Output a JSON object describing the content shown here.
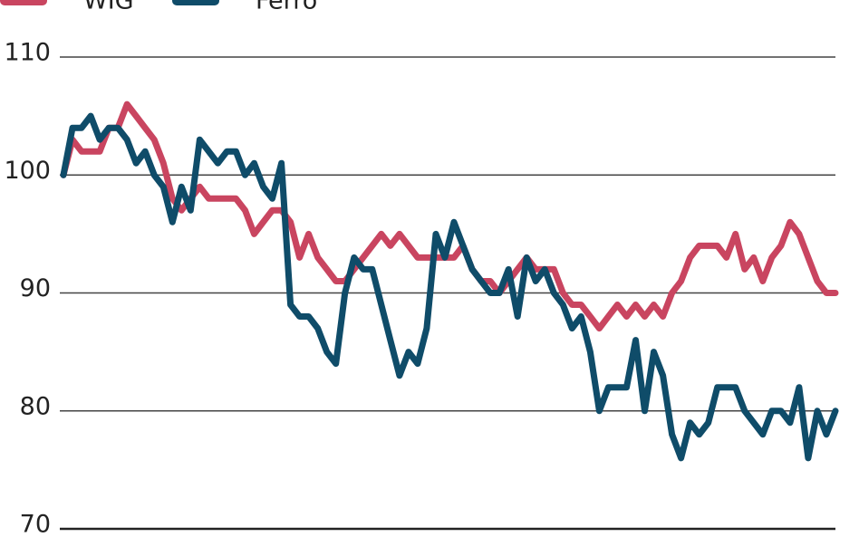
{
  "chart_data": {
    "type": "line",
    "series": [
      {
        "name": "WIG",
        "color": "#c94560",
        "values": [
          100,
          103,
          102,
          102,
          102,
          104,
          104,
          106,
          105,
          104,
          103,
          101,
          98,
          97,
          98,
          99,
          98,
          98,
          98,
          98,
          97,
          95,
          96,
          97,
          97,
          96,
          93,
          95,
          93,
          92,
          91,
          91,
          92,
          93,
          94,
          95,
          94,
          95,
          94,
          93,
          93,
          93,
          93,
          93,
          94,
          92,
          91,
          91,
          90,
          91,
          92,
          93,
          92,
          92,
          92,
          90,
          89,
          89,
          88,
          87,
          88,
          89,
          88,
          89,
          88,
          89,
          88,
          90,
          91,
          93,
          94,
          94,
          94,
          93,
          95,
          92,
          93,
          91,
          93,
          94,
          96,
          95,
          93,
          91,
          90,
          90
        ]
      },
      {
        "name": "Ferro",
        "color": "#0f4c69",
        "values": [
          100,
          104,
          104,
          105,
          103,
          104,
          104,
          103,
          101,
          102,
          100,
          99,
          96,
          99,
          97,
          103,
          102,
          101,
          102,
          102,
          100,
          101,
          99,
          98,
          101,
          89,
          88,
          88,
          87,
          85,
          84,
          90,
          93,
          92,
          92,
          89,
          86,
          83,
          85,
          84,
          87,
          95,
          93,
          96,
          94,
          92,
          91,
          90,
          90,
          92,
          88,
          93,
          91,
          92,
          90,
          89,
          87,
          88,
          85,
          80,
          82,
          82,
          82,
          86,
          80,
          85,
          83,
          78,
          76,
          79,
          78,
          79,
          82,
          82,
          82,
          80,
          79,
          78,
          80,
          80,
          79,
          82,
          76,
          80,
          78,
          80
        ]
      }
    ],
    "ylim": [
      70,
      110
    ],
    "yticks": [
      70,
      80,
      90,
      100,
      110
    ],
    "grid": true,
    "legend": "top-left"
  }
}
